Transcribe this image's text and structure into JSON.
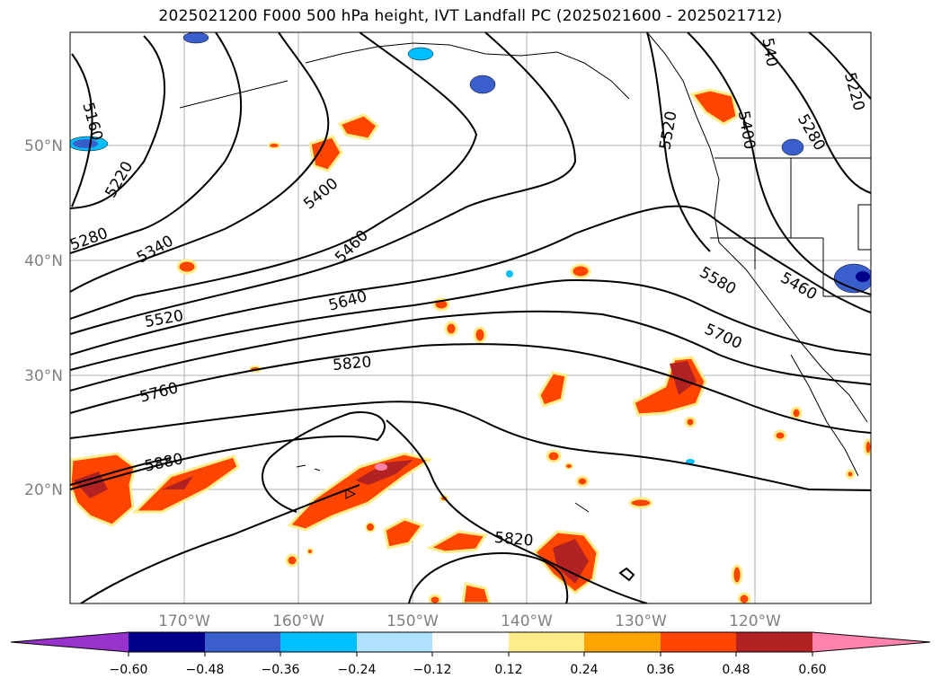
{
  "title": "2025021200 F000 500 hPa height, IVT Landfall PC (2025021600 - 2025021712)",
  "map": {
    "lat_labels": [
      "50°N",
      "40°N",
      "30°N",
      "20°N"
    ],
    "lon_labels": [
      "170°W",
      "160°W",
      "150°W",
      "140°W",
      "130°W",
      "120°W"
    ],
    "contour_labels": [
      "5160",
      "5220",
      "5280",
      "5340",
      "5400",
      "5460",
      "5520",
      "5640",
      "5760",
      "5820",
      "5880",
      "5580",
      "5700",
      "5460",
      "5820",
      "5520",
      "5400",
      "5280",
      "5220",
      "540"
    ]
  },
  "colorbar": {
    "ticks": [
      "−0.60",
      "−0.48",
      "−0.36",
      "−0.24",
      "−0.12",
      "0.12",
      "0.24",
      "0.36",
      "0.48",
      "0.60"
    ],
    "colors": [
      "#9932cc",
      "#00008b",
      "#3a5fcd",
      "#00bfff",
      "#b0e2ff",
      "#ffffff",
      "#ffec8b",
      "#ffa500",
      "#ff4500",
      "#b22222",
      "#ff82ab"
    ]
  }
}
